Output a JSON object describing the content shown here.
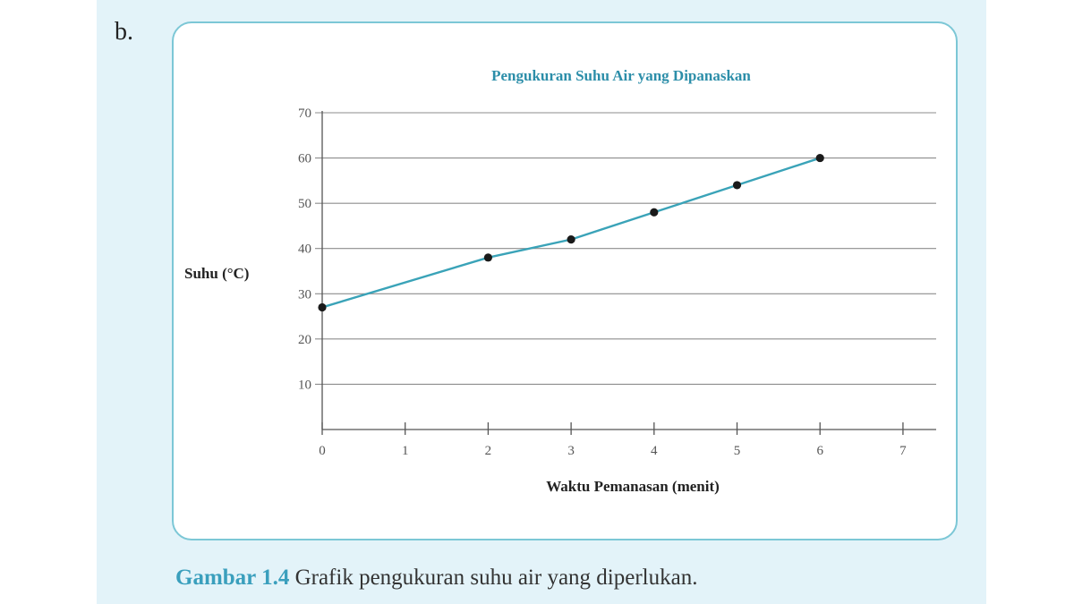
{
  "item_label": "b.",
  "caption": {
    "prefix": "Gambar 1.4",
    "text": " Grafik pengukuran suhu air yang diperlukan."
  },
  "colors": {
    "accent": "#3a9fbd",
    "line": "#3aa3b8",
    "panel": "#e3f3f9",
    "card_border": "#7cc7d6"
  },
  "chart_data": {
    "type": "line",
    "title": "Pengukuran Suhu Air yang Dipanaskan",
    "xlabel": "Waktu Pemanasan (menit)",
    "ylabel": "Suhu (°C)",
    "x_ticks": [
      0,
      1,
      2,
      3,
      4,
      5,
      6,
      7
    ],
    "y_ticks": [
      10,
      20,
      30,
      40,
      50,
      60,
      70
    ],
    "xlim": [
      0,
      7.4
    ],
    "ylim": [
      0,
      70
    ],
    "grid": "horizontal",
    "series": [
      {
        "x": [
          0,
          2,
          3,
          4,
          5,
          6
        ],
        "y": [
          27,
          38,
          42,
          48,
          54,
          60
        ]
      }
    ]
  }
}
